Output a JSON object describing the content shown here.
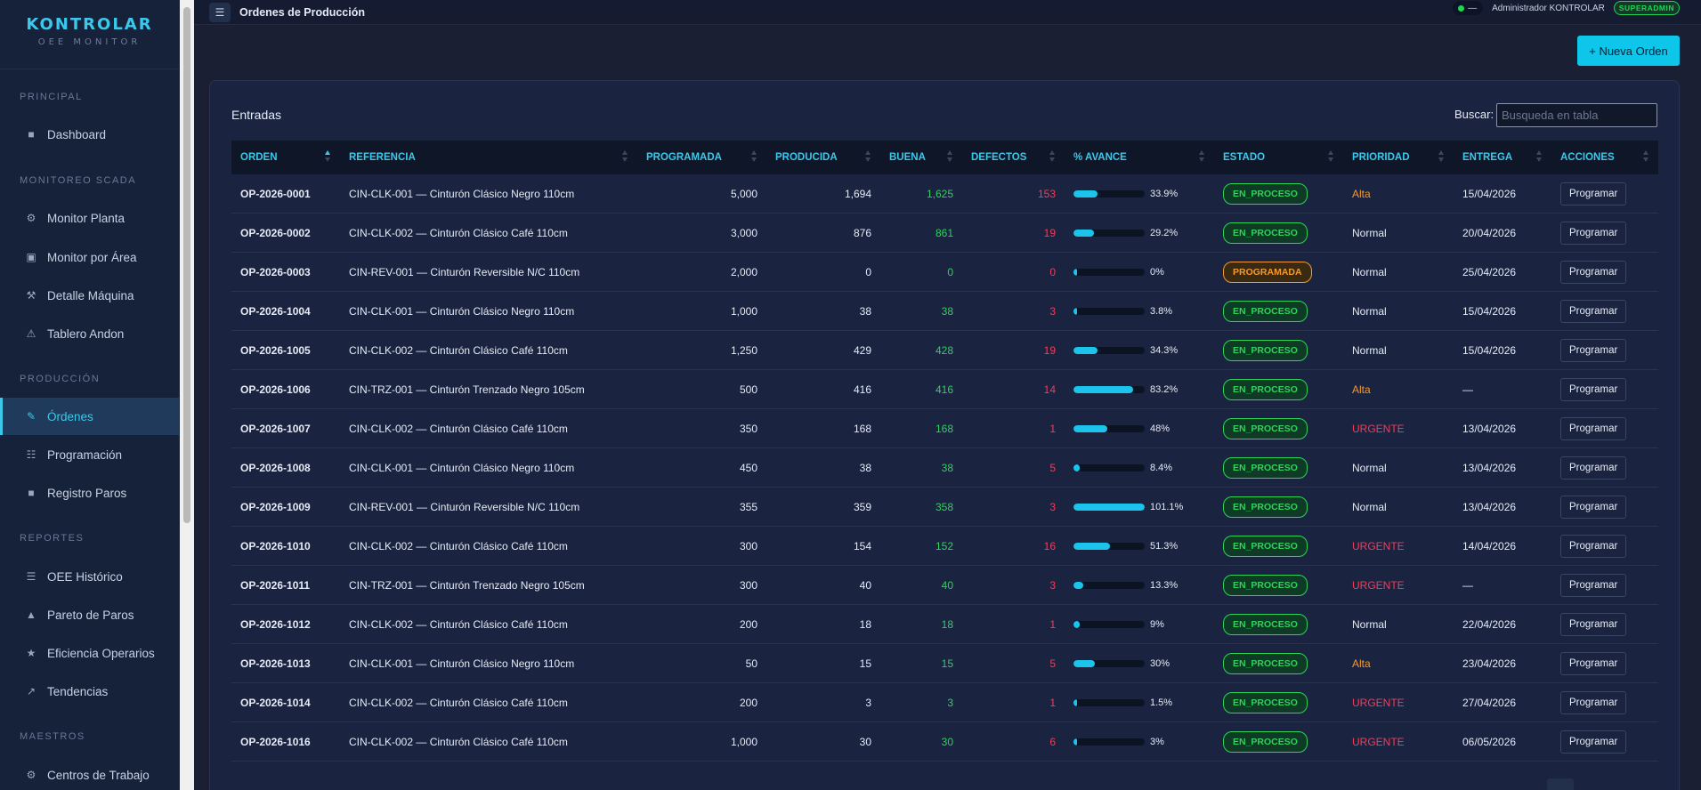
{
  "brand": {
    "name": "KONTROLAR",
    "subtitle": "OEE MONITOR"
  },
  "sidebar": {
    "sections": [
      {
        "label": "PRINCIPAL",
        "items": [
          {
            "label": "Dashboard",
            "icon": "square-icon"
          }
        ]
      },
      {
        "label": "MONITOREO SCADA",
        "items": [
          {
            "label": "Monitor Planta",
            "icon": "gear-icon"
          },
          {
            "label": "Monitor por Área",
            "icon": "grid-icon"
          },
          {
            "label": "Detalle Máquina",
            "icon": "tools-icon"
          },
          {
            "label": "Tablero Andon",
            "icon": "warning-icon"
          }
        ]
      },
      {
        "label": "PRODUCCIÓN",
        "items": [
          {
            "label": "Órdenes",
            "icon": "pencil-icon",
            "active": true
          },
          {
            "label": "Programación",
            "icon": "list-icon"
          },
          {
            "label": "Registro Paros",
            "icon": "square-icon"
          }
        ]
      },
      {
        "label": "REPORTES",
        "items": [
          {
            "label": "OEE Histórico",
            "icon": "lines-icon"
          },
          {
            "label": "Pareto de Paros",
            "icon": "triangle-icon"
          },
          {
            "label": "Eficiencia Operarios",
            "icon": "star-icon"
          },
          {
            "label": "Tendencias",
            "icon": "trend-icon"
          }
        ]
      },
      {
        "label": "MAESTROS",
        "items": [
          {
            "label": "Centros de Trabajo",
            "icon": "gear-icon"
          }
        ]
      }
    ]
  },
  "topbar": {
    "menu_icon": "☰",
    "title": "Ordenes de Producción",
    "status_text": "—",
    "user": "Administrador KONTROLAR",
    "role": "SUPERADMIN"
  },
  "actions": {
    "new_order": "+ Nueva Orden"
  },
  "card": {
    "title": "Entradas",
    "search_label": "Buscar:",
    "search_placeholder": "Busqueda en tabla"
  },
  "table": {
    "columns": [
      "ORDEN",
      "REFERENCIA",
      "PROGRAMADA",
      "PRODUCIDA",
      "BUENA",
      "DEFECTOS",
      "% AVANCE",
      "ESTADO",
      "PRIORIDAD",
      "ENTREGA",
      "ACCIONES"
    ],
    "action_label": "Programar",
    "rows": [
      {
        "orden": "OP-2026-0001",
        "referencia": "CIN-CLK-001 — Cinturón Clásico Negro 110cm",
        "programada": "5,000",
        "producida": "1,694",
        "buena": "1,625",
        "defectos": "153",
        "avance": 33.9,
        "avance_label": "33.9%",
        "estado": "EN_PROCESO",
        "prioridad": "Alta",
        "entrega": "15/04/2026"
      },
      {
        "orden": "OP-2026-0002",
        "referencia": "CIN-CLK-002 — Cinturón Clásico Café 110cm",
        "programada": "3,000",
        "producida": "876",
        "buena": "861",
        "defectos": "19",
        "avance": 29.2,
        "avance_label": "29.2%",
        "estado": "EN_PROCESO",
        "prioridad": "Normal",
        "entrega": "20/04/2026"
      },
      {
        "orden": "OP-2026-0003",
        "referencia": "CIN-REV-001 — Cinturón Reversible N/C 110cm",
        "programada": "2,000",
        "producida": "0",
        "buena": "0",
        "defectos": "0",
        "avance": 0,
        "avance_label": "0%",
        "estado": "PROGRAMADA",
        "prioridad": "Normal",
        "entrega": "25/04/2026"
      },
      {
        "orden": "OP-2026-1004",
        "referencia": "CIN-CLK-001 — Cinturón Clásico Negro 110cm",
        "programada": "1,000",
        "producida": "38",
        "buena": "38",
        "defectos": "3",
        "avance": 3.8,
        "avance_label": "3.8%",
        "estado": "EN_PROCESO",
        "prioridad": "Normal",
        "entrega": "15/04/2026"
      },
      {
        "orden": "OP-2026-1005",
        "referencia": "CIN-CLK-002 — Cinturón Clásico Café 110cm",
        "programada": "1,250",
        "producida": "429",
        "buena": "428",
        "defectos": "19",
        "avance": 34.3,
        "avance_label": "34.3%",
        "estado": "EN_PROCESO",
        "prioridad": "Normal",
        "entrega": "15/04/2026"
      },
      {
        "orden": "OP-2026-1006",
        "referencia": "CIN-TRZ-001 — Cinturón Trenzado Negro 105cm",
        "programada": "500",
        "producida": "416",
        "buena": "416",
        "defectos": "14",
        "avance": 83.2,
        "avance_label": "83.2%",
        "estado": "EN_PROCESO",
        "prioridad": "Alta",
        "entrega": "—"
      },
      {
        "orden": "OP-2026-1007",
        "referencia": "CIN-CLK-002 — Cinturón Clásico Café 110cm",
        "programada": "350",
        "producida": "168",
        "buena": "168",
        "defectos": "1",
        "avance": 48,
        "avance_label": "48%",
        "estado": "EN_PROCESO",
        "prioridad": "URGENTE",
        "entrega": "13/04/2026"
      },
      {
        "orden": "OP-2026-1008",
        "referencia": "CIN-CLK-001 — Cinturón Clásico Negro 110cm",
        "programada": "450",
        "producida": "38",
        "buena": "38",
        "defectos": "5",
        "avance": 8.4,
        "avance_label": "8.4%",
        "estado": "EN_PROCESO",
        "prioridad": "Normal",
        "entrega": "13/04/2026"
      },
      {
        "orden": "OP-2026-1009",
        "referencia": "CIN-REV-001 — Cinturón Reversible N/C 110cm",
        "programada": "355",
        "producida": "359",
        "buena": "358",
        "defectos": "3",
        "avance": 101.1,
        "avance_label": "101.1%",
        "estado": "EN_PROCESO",
        "prioridad": "Normal",
        "entrega": "13/04/2026"
      },
      {
        "orden": "OP-2026-1010",
        "referencia": "CIN-CLK-002 — Cinturón Clásico Café 110cm",
        "programada": "300",
        "producida": "154",
        "buena": "152",
        "defectos": "16",
        "avance": 51.3,
        "avance_label": "51.3%",
        "estado": "EN_PROCESO",
        "prioridad": "URGENTE",
        "entrega": "14/04/2026"
      },
      {
        "orden": "OP-2026-1011",
        "referencia": "CIN-TRZ-001 — Cinturón Trenzado Negro 105cm",
        "programada": "300",
        "producida": "40",
        "buena": "40",
        "defectos": "3",
        "avance": 13.3,
        "avance_label": "13.3%",
        "estado": "EN_PROCESO",
        "prioridad": "URGENTE",
        "entrega": "—"
      },
      {
        "orden": "OP-2026-1012",
        "referencia": "CIN-CLK-002 — Cinturón Clásico Café 110cm",
        "programada": "200",
        "producida": "18",
        "buena": "18",
        "defectos": "1",
        "avance": 9,
        "avance_label": "9%",
        "estado": "EN_PROCESO",
        "prioridad": "Normal",
        "entrega": "22/04/2026"
      },
      {
        "orden": "OP-2026-1013",
        "referencia": "CIN-CLK-001 — Cinturón Clásico Negro 110cm",
        "programada": "50",
        "producida": "15",
        "buena": "15",
        "defectos": "5",
        "avance": 30,
        "avance_label": "30%",
        "estado": "EN_PROCESO",
        "prioridad": "Alta",
        "entrega": "23/04/2026"
      },
      {
        "orden": "OP-2026-1014",
        "referencia": "CIN-CLK-002 — Cinturón Clásico Café 110cm",
        "programada": "200",
        "producida": "3",
        "buena": "3",
        "defectos": "1",
        "avance": 1.5,
        "avance_label": "1.5%",
        "estado": "EN_PROCESO",
        "prioridad": "URGENTE",
        "entrega": "27/04/2026"
      },
      {
        "orden": "OP-2026-1016",
        "referencia": "CIN-CLK-002 — Cinturón Clásico Café 110cm",
        "programada": "1,000",
        "producida": "30",
        "buena": "30",
        "defectos": "6",
        "avance": 3,
        "avance_label": "3%",
        "estado": "EN_PROCESO",
        "prioridad": "URGENTE",
        "entrega": "06/05/2026"
      }
    ]
  },
  "colors": {
    "accent": "#3bc8ea",
    "good": "#2ed35a",
    "defect": "#ef3e5c",
    "warning": "#f29a2e"
  }
}
